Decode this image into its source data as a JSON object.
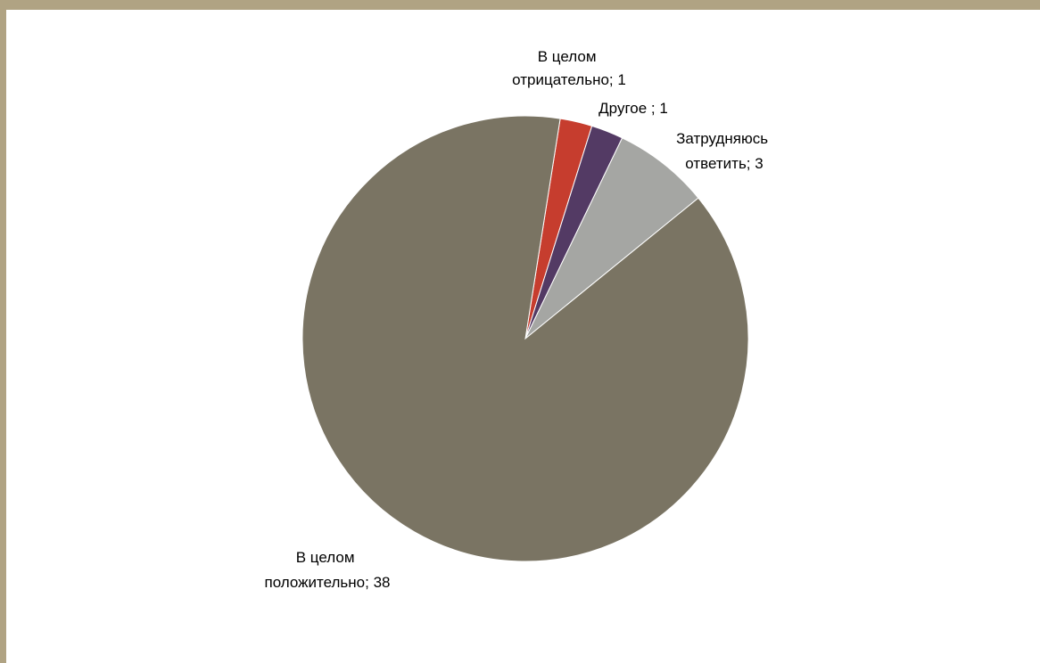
{
  "chart_data": {
    "type": "pie",
    "slices": [
      {
        "category": "В целом отрицательно",
        "value": 1,
        "label_lines": [
          "В целом",
          "отрицательно; 1"
        ],
        "color": "#c63d2e"
      },
      {
        "category": "Другое",
        "value": 1,
        "label_lines": [
          "Другое ; 1"
        ],
        "color": "#533a64"
      },
      {
        "category": "Затрудняюсь ответить",
        "value": 3,
        "label_lines": [
          "Затрудняюсь",
          "ответить; 3"
        ],
        "color": "#a5a6a3"
      },
      {
        "category": "В целом положительно",
        "value": 38,
        "label_lines": [
          "В целом",
          "положительно; 38"
        ],
        "color": "#7a7463"
      }
    ],
    "start_angle_deg": 9,
    "direction": "clockwise",
    "legend": "none",
    "frame_color": "#b0a383"
  }
}
